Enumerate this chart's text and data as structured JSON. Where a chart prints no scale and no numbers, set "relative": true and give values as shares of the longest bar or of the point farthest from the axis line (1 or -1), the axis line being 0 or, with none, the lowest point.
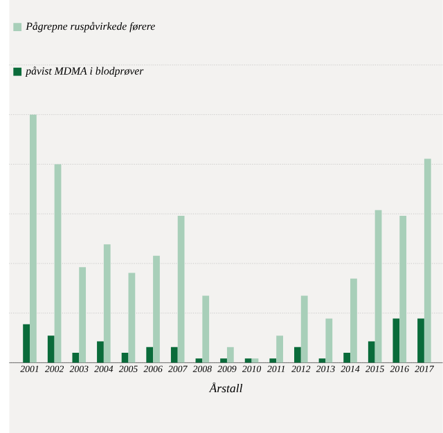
{
  "chart_data": {
    "type": "bar",
    "xlabel": "Årstall",
    "relative": true,
    "grid": "y",
    "legend": "top left",
    "categories": [
      "2001",
      "2002",
      "2003",
      "2004",
      "2005",
      "2006",
      "2007",
      "2008",
      "2009",
      "2010",
      "2011",
      "2012",
      "2013",
      "2014",
      "2015",
      "2016",
      "2017"
    ],
    "series": [
      {
        "name": "påvist MDMA i blodprøver",
        "color": "#0a6b3a",
        "values": [
          0.155,
          0.109,
          0.04,
          0.086,
          0.04,
          0.063,
          0.063,
          0.017,
          0.017,
          0.017,
          0.017,
          0.063,
          0.017,
          0.04,
          0.086,
          0.178,
          0.178
        ]
      },
      {
        "name": "Pågrepne ruspåvirkede førere",
        "color": "#a8cfb9",
        "values": [
          1,
          0.8,
          0.385,
          0.477,
          0.362,
          0.431,
          0.592,
          0.27,
          0.063,
          0.017,
          0.109,
          0.27,
          0.178,
          0.339,
          0.615,
          0.592,
          0.822
        ]
      }
    ]
  }
}
